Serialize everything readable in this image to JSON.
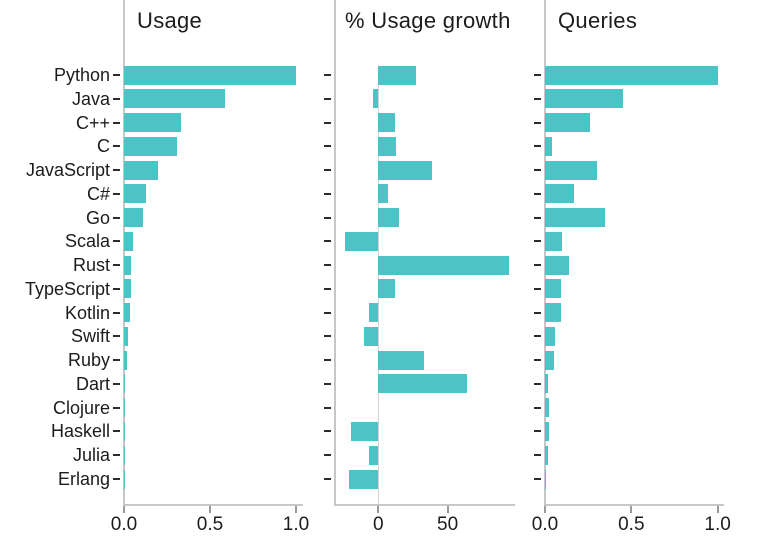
{
  "chart_data": {
    "type": "bar",
    "orientation": "horizontal",
    "bar_color": "#4cc4c6",
    "categories": [
      "Python",
      "Java",
      "C++",
      "C",
      "JavaScript",
      "C#",
      "Go",
      "Scala",
      "Rust",
      "TypeScript",
      "Kotlin",
      "Swift",
      "Ruby",
      "Dart",
      "Clojure",
      "Haskell",
      "Julia",
      "Erlang"
    ],
    "panels": [
      {
        "title": "Usage",
        "xlim": [
          0,
          1.035
        ],
        "xticks": [
          {
            "label": "0.0",
            "value": 0
          },
          {
            "label": "0.5",
            "value": 0.5
          },
          {
            "label": "1.0",
            "value": 1.0
          }
        ],
        "values": [
          1.0,
          0.59,
          0.33,
          0.31,
          0.2,
          0.13,
          0.11,
          0.05,
          0.04,
          0.042,
          0.035,
          0.025,
          0.017,
          0.008,
          0.002,
          0.002,
          0.002,
          0.002
        ]
      },
      {
        "title": "% Usage growth",
        "xlim": [
          -31.2,
          97.9
        ],
        "xticks": [
          {
            "label": "0",
            "value": 0
          },
          {
            "label": "50",
            "value": 50
          }
        ],
        "values": [
          27,
          -4,
          12,
          13,
          39,
          7,
          15,
          -24,
          94,
          12,
          -7,
          -10,
          33,
          64,
          0,
          -20,
          -7,
          -21
        ]
      },
      {
        "title": "Queries",
        "xlim": [
          0,
          1.031
        ],
        "xticks": [
          {
            "label": "0.0",
            "value": 0
          },
          {
            "label": "0.5",
            "value": 0.5
          },
          {
            "label": "1.0",
            "value": 1.0
          }
        ],
        "values": [
          1.0,
          0.45,
          0.26,
          0.04,
          0.3,
          0.17,
          0.35,
          0.1,
          0.14,
          0.09,
          0.09,
          0.06,
          0.05,
          0.015,
          0.025,
          0.025,
          0.017,
          0.008
        ]
      }
    ]
  }
}
